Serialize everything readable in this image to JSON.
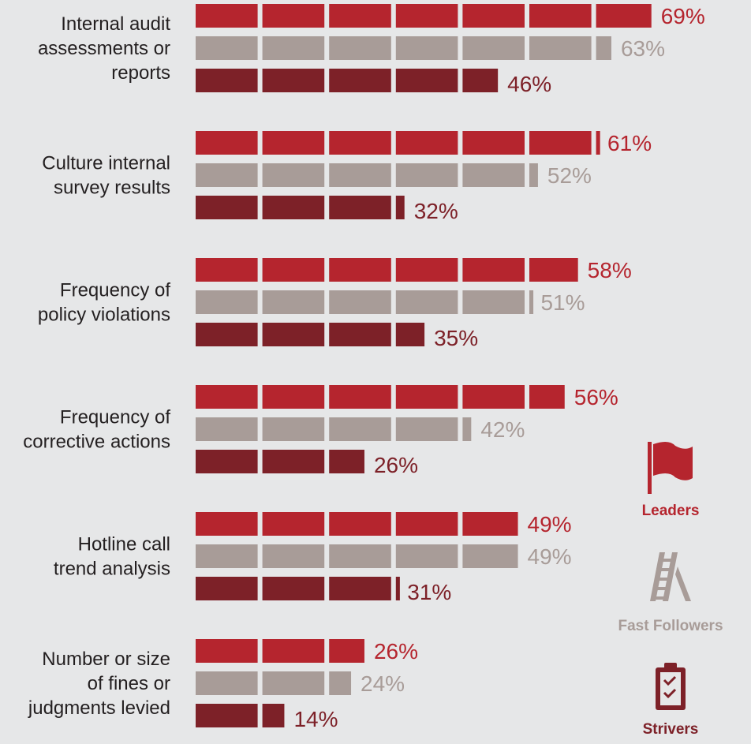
{
  "chart_data": {
    "type": "bar",
    "orientation": "horizontal",
    "categories": [
      [
        "Internal audit",
        "assessments or",
        "reports"
      ],
      [
        "Culture internal",
        "survey results"
      ],
      [
        "Frequency of",
        "policy violations"
      ],
      [
        "Frequency of",
        "corrective actions"
      ],
      [
        "Hotline call",
        "trend analysis"
      ],
      [
        "Number or size",
        "of fines or",
        "judgments levied"
      ]
    ],
    "series": [
      {
        "name": "Leaders",
        "color": "#b5252e",
        "values": [
          69,
          61,
          58,
          56,
          49,
          26
        ]
      },
      {
        "name": "Fast Followers",
        "color": "#a89c98",
        "values": [
          63,
          52,
          51,
          42,
          49,
          24
        ]
      },
      {
        "name": "Strivers",
        "color": "#7d2128",
        "values": [
          46,
          32,
          35,
          26,
          31,
          14
        ]
      }
    ],
    "value_suffix": "%",
    "segment_size": 10,
    "legend_position": "bottom-right",
    "legend_icons": [
      "flag-icon",
      "ladder-icon",
      "clipboard-icon"
    ],
    "grid": false
  }
}
